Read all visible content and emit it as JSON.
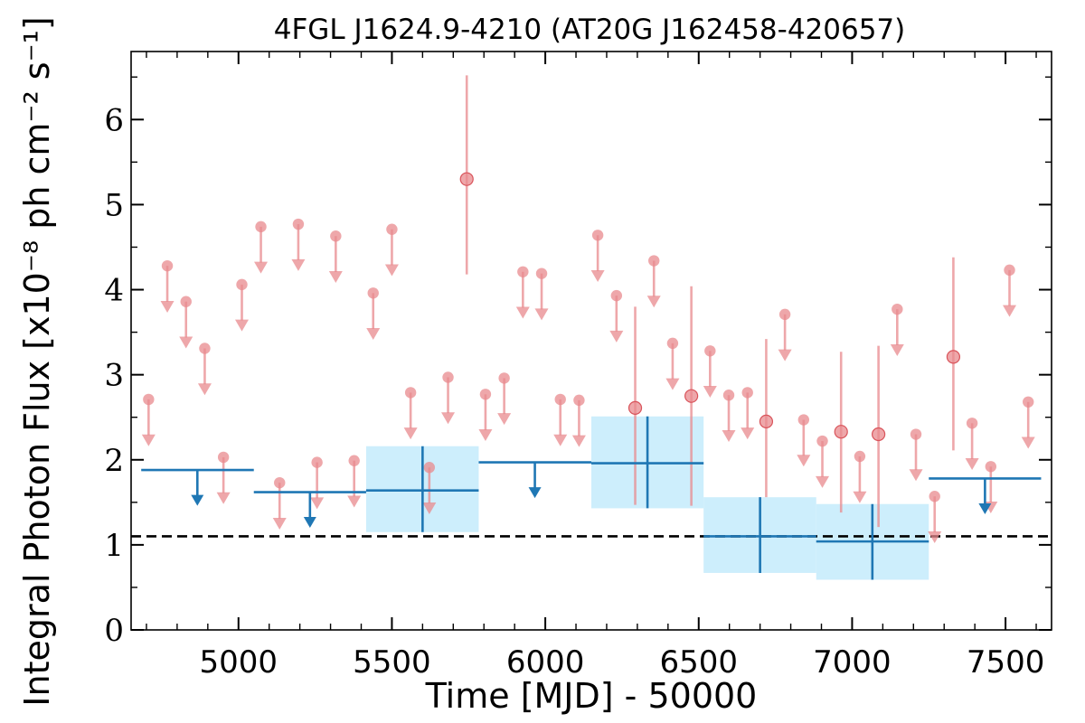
{
  "chart_data": {
    "type": "scatter",
    "title": "4FGL J1624.9-4210 (AT20G J162458-420657)",
    "xlabel": "Time [MJD] - 50000",
    "ylabel": "Integral Photon Flux [x10⁻⁸ ph cm⁻² s⁻¹]",
    "xlim": [
      4650,
      7650
    ],
    "ylim": [
      0,
      6.8
    ],
    "xticks": [
      5000,
      5500,
      6000,
      6500,
      7000,
      7500
    ],
    "xtick_labels": [
      "5000",
      "5500",
      "6000",
      "6500",
      "7000",
      "7500"
    ],
    "yticks": [
      0,
      1,
      2,
      3,
      4,
      5,
      6
    ],
    "ytick_labels": [
      "0",
      "1",
      "2",
      "3",
      "4",
      "5",
      "6"
    ],
    "reference_line": {
      "y": 1.1,
      "style": "dashed",
      "color": "#000000"
    },
    "colors": {
      "short_bins": "#e8898e",
      "long_bins": "#1f77b4",
      "band": "#cdeefc"
    },
    "series": [
      {
        "cadence": "short",
        "upper_limits": [
          {
            "x": 4707,
            "y": 2.71
          },
          {
            "x": 4768,
            "y": 4.28
          },
          {
            "x": 4829,
            "y": 3.86
          },
          {
            "x": 4890,
            "y": 3.31
          },
          {
            "x": 4951,
            "y": 2.03
          },
          {
            "x": 5011,
            "y": 4.06
          },
          {
            "x": 5073,
            "y": 4.74
          },
          {
            "x": 5134,
            "y": 1.73
          },
          {
            "x": 5195,
            "y": 4.77
          },
          {
            "x": 5256,
            "y": 1.97
          },
          {
            "x": 5317,
            "y": 4.63
          },
          {
            "x": 5377,
            "y": 1.99
          },
          {
            "x": 5439,
            "y": 3.96
          },
          {
            "x": 5500,
            "y": 4.71
          },
          {
            "x": 5561,
            "y": 2.79
          },
          {
            "x": 5622,
            "y": 1.91
          },
          {
            "x": 5683,
            "y": 2.97
          },
          {
            "x": 5805,
            "y": 2.77
          },
          {
            "x": 5866,
            "y": 2.96
          },
          {
            "x": 5927,
            "y": 4.21
          },
          {
            "x": 5988,
            "y": 4.19
          },
          {
            "x": 6049,
            "y": 2.71
          },
          {
            "x": 6110,
            "y": 2.7
          },
          {
            "x": 6171,
            "y": 4.64
          },
          {
            "x": 6232,
            "y": 3.93
          },
          {
            "x": 6354,
            "y": 4.34
          },
          {
            "x": 6415,
            "y": 3.37
          },
          {
            "x": 6537,
            "y": 3.28
          },
          {
            "x": 6598,
            "y": 2.76
          },
          {
            "x": 6659,
            "y": 2.79
          },
          {
            "x": 6781,
            "y": 3.71
          },
          {
            "x": 6842,
            "y": 2.47
          },
          {
            "x": 6903,
            "y": 2.22
          },
          {
            "x": 7025,
            "y": 2.04
          },
          {
            "x": 7147,
            "y": 3.77
          },
          {
            "x": 7208,
            "y": 2.3
          },
          {
            "x": 7269,
            "y": 1.57
          },
          {
            "x": 7391,
            "y": 2.43
          },
          {
            "x": 7452,
            "y": 1.92
          },
          {
            "x": 7513,
            "y": 4.23
          },
          {
            "x": 7574,
            "y": 2.68
          }
        ],
        "detections": [
          {
            "x": 5744,
            "y": 5.3,
            "ylo": 4.18,
            "yhi": 6.52
          },
          {
            "x": 6293,
            "y": 2.61,
            "ylo": 1.47,
            "yhi": 3.8
          },
          {
            "x": 6476,
            "y": 2.75,
            "ylo": 1.46,
            "yhi": 4.04
          },
          {
            "x": 6720,
            "y": 2.45,
            "ylo": 1.56,
            "yhi": 3.42
          },
          {
            "x": 6964,
            "y": 2.33,
            "ylo": 1.38,
            "yhi": 3.27
          },
          {
            "x": 7086,
            "y": 2.3,
            "ylo": 1.21,
            "yhi": 3.34
          },
          {
            "x": 7330,
            "y": 3.21,
            "ylo": 2.11,
            "yhi": 4.38
          }
        ]
      },
      {
        "cadence": "long",
        "upper_limits": [
          {
            "x0": 4683,
            "x1": 5050,
            "x": 4866,
            "y": 1.88
          },
          {
            "x0": 5050,
            "x1": 5416,
            "x": 5233,
            "y": 1.62
          },
          {
            "x0": 5783,
            "x1": 6150,
            "x": 5966,
            "y": 1.97
          },
          {
            "x0": 7250,
            "x1": 7616,
            "x": 7433,
            "y": 1.78
          }
        ],
        "detections": [
          {
            "x0": 5416,
            "x1": 5783,
            "x": 5600,
            "y": 1.64,
            "ylo": 1.15,
            "yhi": 2.16
          },
          {
            "x0": 6150,
            "x1": 6516,
            "x": 6333,
            "y": 1.96,
            "ylo": 1.43,
            "yhi": 2.51
          },
          {
            "x0": 6516,
            "x1": 6883,
            "x": 6700,
            "y": 1.1,
            "ylo": 0.67,
            "yhi": 1.56
          },
          {
            "x0": 6883,
            "x1": 7250,
            "x": 7066,
            "y": 1.04,
            "ylo": 0.59,
            "yhi": 1.48
          }
        ]
      }
    ]
  }
}
